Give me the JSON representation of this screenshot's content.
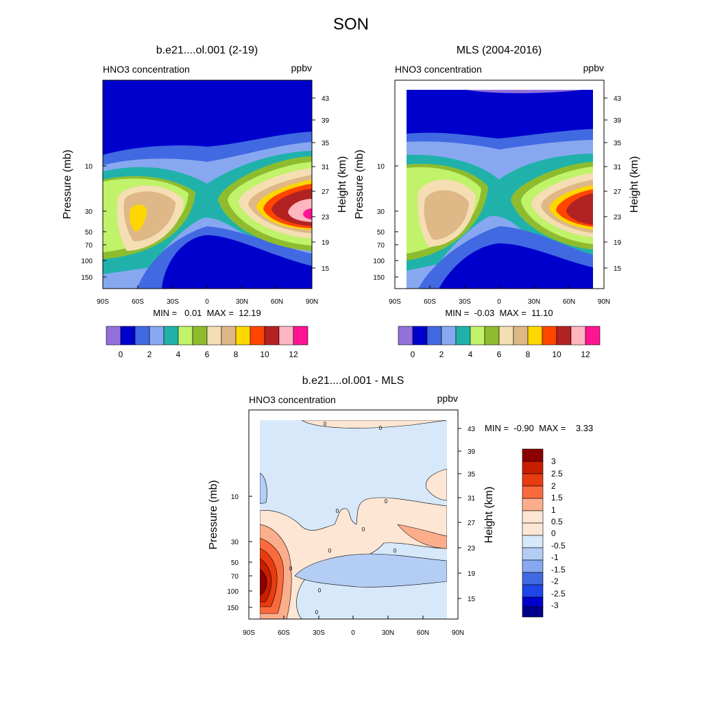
{
  "figure_title": "SON",
  "colors": {
    "levels": [
      "#9370db",
      "#0000cd",
      "#4169e1",
      "#87a8f0",
      "#20b2aa",
      "#c0f26a",
      "#8fbc2f",
      "#f5deb3",
      "#deb887",
      "#ffd700",
      "#ff4500",
      "#b22222",
      "#ffb6c1",
      "#ff1493"
    ],
    "diff_levels": [
      "#00008b",
      "#0000cd",
      "#1e46e6",
      "#4169e1",
      "#87a8f0",
      "#b4cdf5",
      "#d7e8fa",
      "#fde6d4",
      "#fcae8c",
      "#fa6a3c",
      "#e63c0f",
      "#c81e00",
      "#8b0000"
    ]
  },
  "chart_data": [
    {
      "type": "heatmap",
      "name": "model",
      "title": "b.e21....ol.001 (2-19)",
      "left_label": "HNO3 concentration",
      "units": "ppbv",
      "ylabel": "Pressure (mb)",
      "ylabel_right": "Height (km)",
      "x_ticks": [
        "90S",
        "60S",
        "30S",
        "0",
        "30N",
        "60N",
        "90N"
      ],
      "pressure_ticks": [
        "10",
        "30",
        "50",
        "70",
        "100",
        "150"
      ],
      "height_ticks": [
        "43",
        "39",
        "35",
        "31",
        "27",
        "23",
        "19",
        "15"
      ],
      "min_max": "MIN =   0.01  MAX =  12.19",
      "colorbar_labels": [
        "0",
        "2",
        "4",
        "6",
        "8",
        "10",
        "12"
      ],
      "field_min": 0.01,
      "field_max": 12.19,
      "lat_range": [
        -90,
        90
      ],
      "peaks": [
        {
          "lat": -60,
          "height_km": 23,
          "value": 8.6
        },
        {
          "lat": 85,
          "height_km": 23,
          "value": 12.19
        }
      ]
    },
    {
      "type": "heatmap",
      "name": "mls",
      "title": "MLS (2004-2016)",
      "left_label": "HNO3 concentration",
      "units": "ppbv",
      "ylabel": "Pressure (mb)",
      "ylabel_right": "Height (km)",
      "x_ticks": [
        "90S",
        "60S",
        "30S",
        "0",
        "30N",
        "60N",
        "90N"
      ],
      "pressure_ticks": [
        "10",
        "30",
        "50",
        "70",
        "100",
        "150"
      ],
      "height_ticks": [
        "43",
        "39",
        "35",
        "31",
        "27",
        "23",
        "19",
        "15"
      ],
      "min_max": "MIN =  -0.03  MAX =  11.10",
      "colorbar_labels": [
        "0",
        "2",
        "4",
        "6",
        "8",
        "10",
        "12"
      ],
      "field_min": -0.03,
      "field_max": 11.1,
      "lat_range": [
        -82,
        82
      ],
      "peaks": [
        {
          "lat": -60,
          "height_km": 23,
          "value": 7.6
        },
        {
          "lat": 82,
          "height_km": 23,
          "value": 11.1
        }
      ]
    },
    {
      "type": "heatmap",
      "name": "difference",
      "title": "b.e21....ol.001 - MLS",
      "left_label": "HNO3 concentration",
      "units": "ppbv",
      "ylabel": "Pressure (mb)",
      "ylabel_right": "Height (km)",
      "x_ticks": [
        "90S",
        "60S",
        "30S",
        "0",
        "30N",
        "60N",
        "90N"
      ],
      "pressure_ticks": [
        "10",
        "30",
        "50",
        "70",
        "100",
        "150"
      ],
      "height_ticks": [
        "43",
        "39",
        "35",
        "31",
        "27",
        "23",
        "19",
        "15"
      ],
      "min_max": "MIN =  -0.90  MAX =    3.33",
      "colorbar_labels": [
        "3",
        "2.5",
        "2",
        "1.5",
        "1",
        "0.5",
        "0",
        "-0.5",
        "-1",
        "-1.5",
        "-2",
        "-2.5",
        "-3"
      ],
      "contour_labels": [
        "0",
        "0",
        "0",
        "0",
        "0",
        "0",
        "0",
        "0",
        "0",
        "0"
      ],
      "field_min": -0.9,
      "field_max": 3.33,
      "lat_range": [
        -82,
        82
      ]
    }
  ]
}
